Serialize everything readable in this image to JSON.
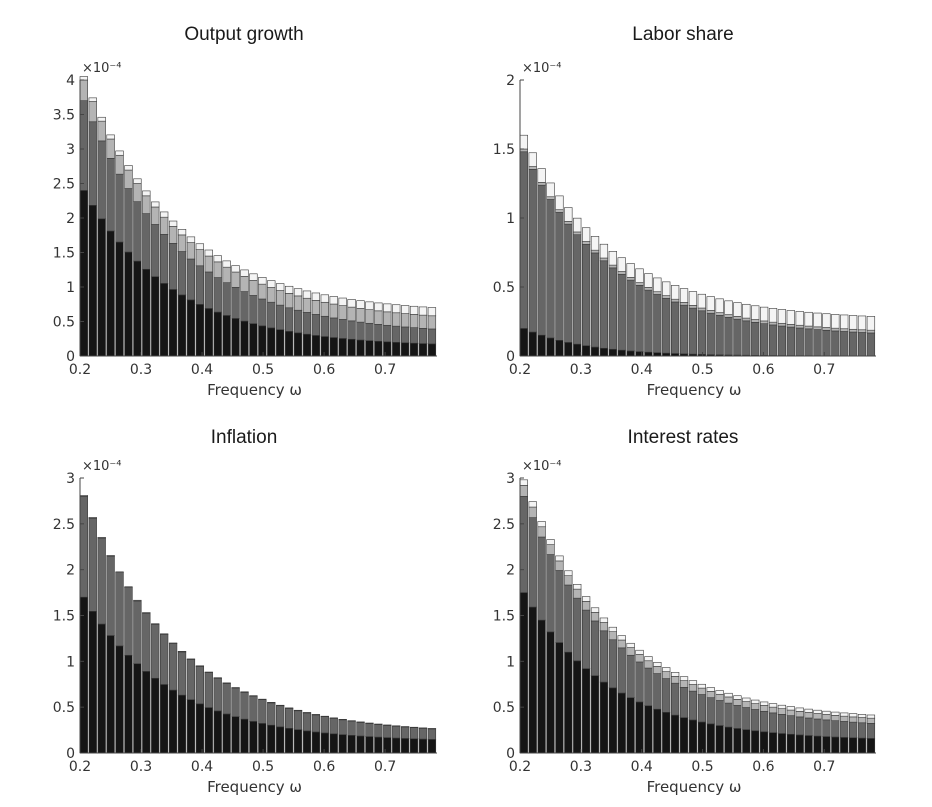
{
  "chart_data": [
    {
      "type": "bar",
      "stacked": true,
      "title": "Output growth",
      "xlabel": "Frequency ω",
      "ylabel": "",
      "y_multiplier": "×10⁻⁴",
      "xlim": [
        0.2,
        0.785
      ],
      "ylim": [
        0,
        4
      ],
      "xticks": [
        "0.2",
        "0.3",
        "0.4",
        "0.5",
        "0.6",
        "0.7"
      ],
      "yticks": [
        "0",
        "0.5",
        "1",
        "1.5",
        "2",
        "2.5",
        "3",
        "3.5",
        "4"
      ],
      "grid": false,
      "legend": false,
      "components": [
        {
          "color": "#151515",
          "start": 2.4,
          "k": 3.9,
          "floor": 0.13
        },
        {
          "color": "#666666",
          "start": 1.3,
          "k": 3.2,
          "floor": 0.17
        },
        {
          "color": "#b4b4b4",
          "start": 0.3,
          "k": 2.4,
          "floor": 0.18
        },
        {
          "color": "#f4f4f4",
          "start": 0.05,
          "k": 1.5,
          "floor": 0.14
        }
      ]
    },
    {
      "type": "bar",
      "stacked": true,
      "title": "Labor share",
      "xlabel": "Frequency ω",
      "ylabel": "",
      "y_multiplier": "×10⁻⁴",
      "xlim": [
        0.2,
        0.785
      ],
      "ylim": [
        0,
        2
      ],
      "xticks": [
        "0.2",
        "0.3",
        "0.4",
        "0.5",
        "0.6",
        "0.7"
      ],
      "yticks": [
        "0",
        "0.5",
        "1",
        "1.5",
        "2"
      ],
      "grid": false,
      "legend": false,
      "components": [
        {
          "color": "#151515",
          "start": 0.2,
          "k": 5.5,
          "floor": 0.0
        },
        {
          "color": "#666666",
          "start": 1.28,
          "k": 3.6,
          "floor": 0.135
        },
        {
          "color": "#b4b4b4",
          "start": 0.02,
          "k": 3.0,
          "floor": 0.02
        },
        {
          "color": "#f4f4f4",
          "start": 0.1,
          "k": 2.0,
          "floor": 0.1
        }
      ]
    },
    {
      "type": "bar",
      "stacked": true,
      "title": "Inflation",
      "xlabel": "Frequency ω",
      "ylabel": "",
      "y_multiplier": "×10⁻⁴",
      "xlim": [
        0.2,
        0.785
      ],
      "ylim": [
        0,
        3
      ],
      "xticks": [
        "0.2",
        "0.3",
        "0.4",
        "0.5",
        "0.6",
        "0.7"
      ],
      "yticks": [
        "0",
        "0.5",
        "1",
        "1.5",
        "2",
        "2.5",
        "3"
      ],
      "grid": false,
      "legend": false,
      "components": [
        {
          "color": "#151515",
          "start": 1.7,
          "k": 4.0,
          "floor": 0.12
        },
        {
          "color": "#666666",
          "start": 1.1,
          "k": 3.4,
          "floor": 0.08
        },
        {
          "color": "#b4b4b4",
          "start": 0.01,
          "k": 3.0,
          "floor": 0.005
        },
        {
          "color": "#f4f4f4",
          "start": 0.0,
          "k": 3.0,
          "floor": 0.0
        }
      ]
    },
    {
      "type": "bar",
      "stacked": true,
      "title": "Interest rates",
      "xlabel": "Frequency ω",
      "ylabel": "",
      "y_multiplier": "×10⁻⁴",
      "xlim": [
        0.2,
        0.785
      ],
      "ylim": [
        0,
        3
      ],
      "xticks": [
        "0.2",
        "0.3",
        "0.4",
        "0.5",
        "0.6",
        "0.7"
      ],
      "yticks": [
        "0",
        "0.5",
        "1",
        "1.5",
        "2",
        "2.5",
        "3"
      ],
      "grid": false,
      "legend": false,
      "components": [
        {
          "color": "#151515",
          "start": 1.75,
          "k": 4.0,
          "floor": 0.13
        },
        {
          "color": "#666666",
          "start": 1.05,
          "k": 3.3,
          "floor": 0.13
        },
        {
          "color": "#b4b4b4",
          "start": 0.12,
          "k": 2.4,
          "floor": 0.05
        },
        {
          "color": "#f4f4f4",
          "start": 0.06,
          "k": 1.8,
          "floor": 0.03
        }
      ]
    }
  ],
  "bar_count": 40
}
